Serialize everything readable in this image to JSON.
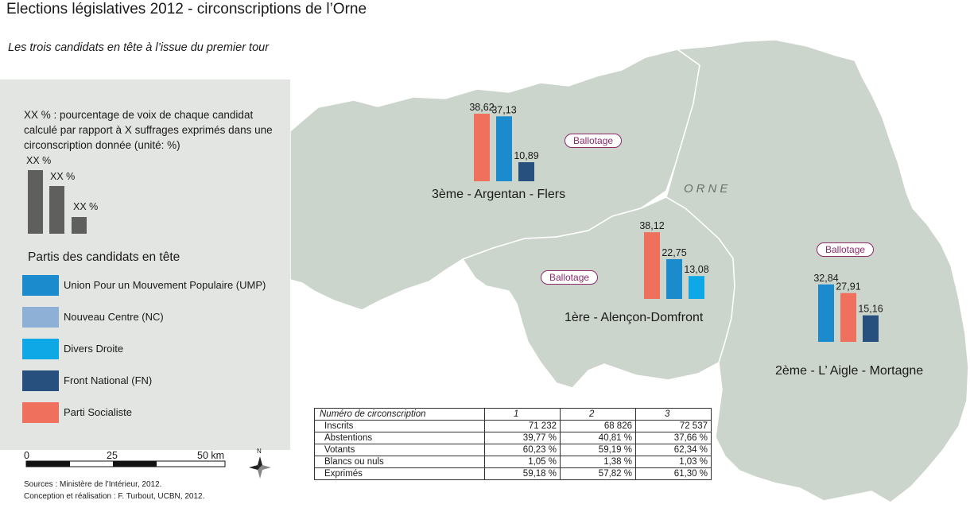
{
  "title": "Elections législatives 2012 - circonscriptions de l’Orne",
  "subtitle": "Les trois candidats en tête à l’issue du premier tour",
  "region_label": "ORNE",
  "legend": {
    "description": "XX % : pourcentage de voix de chaque candidat calculé par rapport à X suffrages exprimés dans une circonscription donnée (unité: %)",
    "demo_labels": [
      "XX %",
      "XX %",
      "XX %"
    ],
    "parties_title": "Partis des candidats en tête",
    "parties": [
      {
        "name": "Union Pour un Mouvement Populaire (UMP)",
        "color": "#1c8bcd"
      },
      {
        "name": "Nouveau Centre (NC)",
        "color": "#8fb0d6"
      },
      {
        "name": "Divers Droite",
        "color": "#0fa8e6"
      },
      {
        "name": "Front National (FN)",
        "color": "#27507f"
      },
      {
        "name": "Parti Socialiste",
        "color": "#f0705e"
      }
    ]
  },
  "scale": {
    "labels": [
      "0",
      "25",
      "50 km"
    ]
  },
  "north_label": "N",
  "credits": {
    "sources": "Sources : Ministère de l’Intérieur, 2012.",
    "conception": "Conception et réalisation : F. Turbout, UCBN, 2012."
  },
  "ballotage_label": "Ballotage",
  "constituencies": [
    {
      "name": "3ème - Argentan - Flers",
      "ballotage": true,
      "results": [
        {
          "party": "Parti Socialiste",
          "value": 38.62,
          "label": "38,62"
        },
        {
          "party": "Union Pour un Mouvement Populaire (UMP)",
          "value": 37.13,
          "label": "37,13"
        },
        {
          "party": "Front National (FN)",
          "value": 10.89,
          "label": "10,89"
        }
      ]
    },
    {
      "name": "1ère - Alençon-Domfront",
      "ballotage": true,
      "results": [
        {
          "party": "Parti Socialiste",
          "value": 38.12,
          "label": "38,12"
        },
        {
          "party": "Union Pour un Mouvement Populaire (UMP)",
          "value": 22.75,
          "label": "22,75"
        },
        {
          "party": "Divers Droite",
          "value": 13.08,
          "label": "13,08"
        }
      ]
    },
    {
      "name": "2ème - L’ Aigle - Mortagne",
      "ballotage": true,
      "results": [
        {
          "party": "Union Pour un Mouvement Populaire (UMP)",
          "value": 32.84,
          "label": "32,84"
        },
        {
          "party": "Parti Socialiste",
          "value": 27.91,
          "label": "27,91"
        },
        {
          "party": "Front National (FN)",
          "value": 15.16,
          "label": "15,16"
        }
      ]
    }
  ],
  "table": {
    "header": [
      "Numéro de circonscription",
      "1",
      "2",
      "3"
    ],
    "rows": [
      [
        "Inscrits",
        "71 232",
        "68 826",
        "72 537"
      ],
      [
        "Abstentions",
        "39,77 %",
        "40,81 %",
        "37,66 %"
      ],
      [
        "Votants",
        "60,23 %",
        "59,19 %",
        "62,34 %"
      ],
      [
        "Blancs ou nuls",
        "1,05 %",
        "1,38 %",
        "1,03 %"
      ],
      [
        "Exprimés",
        "59,18 %",
        "57,82 %",
        "61,30 %"
      ]
    ]
  }
}
